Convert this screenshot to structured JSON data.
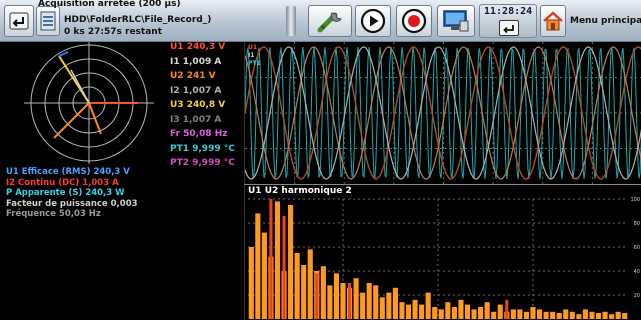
{
  "toolbar": {
    "status_title": "Acquisition arrêtée (200 µs)",
    "file_path": "HDD\\FolderRLC\\File_Record_)",
    "time_remaining": "0 ks 27:57s restant",
    "clock": "11:28:24",
    "menu_label": "Menu principa"
  },
  "readouts": [
    {
      "label": "U1 240,3 V",
      "color": "#ff5030"
    },
    {
      "label": "I1 1,009 A",
      "color": "#d8d8d8"
    },
    {
      "label": "U2 241 V",
      "color": "#ff8a1c"
    },
    {
      "label": "I2 1,007 A",
      "color": "#b0b0b0"
    },
    {
      "label": "U3 240,8 V",
      "color": "#f0d040"
    },
    {
      "label": "I3 1,007 A",
      "color": "#808080"
    },
    {
      "label": "Fr 50,08 Hz",
      "color": "#e060e0"
    },
    {
      "label": "PT1 9,999 °C",
      "color": "#40c8d0"
    },
    {
      "label": "PT2 9,999 °C",
      "color": "#d050c0"
    }
  ],
  "summary": [
    {
      "label": "U1 Efficace (RMS) 240,3 V",
      "color": "#4aa0ff"
    },
    {
      "label": "I2 Continu (DC) 1,003 A",
      "color": "#ff3b2b"
    },
    {
      "label": "P Apparente (S) 240,3 W",
      "color": "#3ad0e8"
    },
    {
      "label": "Facteur de puissance 0,003",
      "color": "#cfcfcf"
    },
    {
      "label": "Fréquence 50,03 Hz",
      "color": "#9a9a9a"
    }
  ],
  "waveform": {
    "legend": [
      {
        "label": "U1",
        "color": "#ff5030"
      },
      {
        "label": "I1",
        "color": "#cfcfcf"
      },
      {
        "label": "PT1",
        "color": "#40c8d0"
      }
    ]
  },
  "chart_data": {
    "type": "bar",
    "title": "U1 U2 harmonique 2",
    "ylim": [
      0,
      100
    ],
    "y_ticks": [
      "100",
      "80",
      "60",
      "40",
      "20"
    ],
    "grid": true,
    "series": [
      {
        "color": "#ff9a20",
        "values": [
          60,
          88,
          72,
          52,
          98,
          40,
          95,
          55,
          45,
          58,
          40,
          44,
          28,
          38,
          30,
          26,
          34,
          22,
          30,
          28,
          18,
          22,
          26,
          14,
          12,
          16,
          12,
          22,
          10,
          8,
          14,
          10,
          16,
          12,
          8,
          10,
          14,
          6,
          12,
          6,
          8,
          8,
          6,
          10,
          8,
          6,
          6,
          5,
          8,
          6,
          4,
          8,
          6,
          5,
          6,
          4,
          6,
          5
        ]
      },
      {
        "color": "#e8451e",
        "values": [
          0,
          0,
          0,
          100,
          0,
          86,
          0,
          0,
          0,
          0,
          38,
          0,
          0,
          0,
          0,
          30,
          0,
          0,
          0,
          0,
          0,
          0,
          0,
          0,
          0,
          0,
          0,
          0,
          0,
          0,
          0,
          0,
          0,
          0,
          0,
          0,
          0,
          0,
          0,
          16,
          0,
          0,
          0,
          0,
          0,
          0,
          0,
          0,
          0,
          0,
          0,
          0,
          0,
          0,
          0,
          0,
          0,
          0
        ]
      }
    ]
  }
}
